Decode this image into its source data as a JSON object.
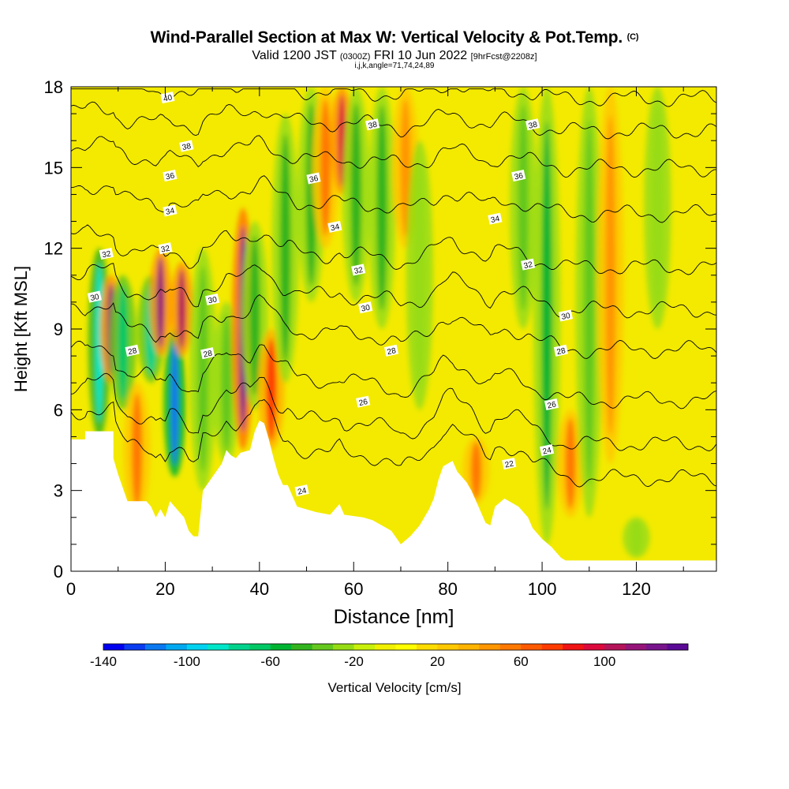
{
  "header": {
    "title": "Wind-Parallel Section at Max W: Vertical Velocity & Pot.Temp.",
    "copyright": "(C)",
    "valid_main": "Valid 1200 JST",
    "valid_utc": "(0300Z)",
    "valid_date": "FRI 10 Jun 2022",
    "forecast": "[9hrFcst@2208z]",
    "indices": "i,j,k,angle=71,74,24,89"
  },
  "chart_data": {
    "type": "heatmap",
    "xlabel": "Distance [nm]",
    "ylabel": "Height [Kft MSL]",
    "xlim": [
      0,
      137
    ],
    "ylim": [
      0,
      18
    ],
    "x_ticks": [
      0,
      20,
      40,
      60,
      80,
      100,
      120
    ],
    "y_ticks": [
      0,
      3,
      6,
      9,
      12,
      15,
      18
    ],
    "colorbar": {
      "label": "Vertical Velocity [cm/s]",
      "range": [
        -140,
        140
      ],
      "tick_values": [
        -140,
        -100,
        -60,
        -20,
        20,
        60,
        100
      ],
      "colors": [
        "#0000f0",
        "#0a3cf0",
        "#0a78f0",
        "#00a8f0",
        "#00d2f0",
        "#00e6c8",
        "#00d28c",
        "#00c864",
        "#00b432",
        "#32b41e",
        "#64c81e",
        "#96dc14",
        "#c8f00a",
        "#f0f000",
        "#ffff00",
        "#ffdc00",
        "#ffc800",
        "#ffb400",
        "#ff9600",
        "#ff7800",
        "#ff5a00",
        "#ff3c00",
        "#f01414",
        "#dc0a3c",
        "#b4145a",
        "#961478",
        "#78148c",
        "#5a0a96"
      ]
    },
    "velocity_features": [
      {
        "x": 6,
        "ymin": 5,
        "ymax": 12,
        "w": -90
      },
      {
        "x": 8.5,
        "ymin": 7,
        "ymax": 11,
        "w": 110
      },
      {
        "x": 11,
        "ymin": 6,
        "ymax": 11,
        "w": -70
      },
      {
        "x": 14,
        "ymin": 2,
        "ymax": 7,
        "w": 50
      },
      {
        "x": 17,
        "ymin": 7,
        "ymax": 11,
        "w": -80
      },
      {
        "x": 19,
        "ymin": 8,
        "ymax": 12,
        "w": 110
      },
      {
        "x": 22,
        "ymin": 3.5,
        "ymax": 9,
        "w": -120
      },
      {
        "x": 23.5,
        "ymin": 8,
        "ymax": 11.5,
        "w": 100
      },
      {
        "x": 28,
        "ymin": 3,
        "ymax": 12,
        "w": -40
      },
      {
        "x": 33,
        "ymin": 4,
        "ymax": 10,
        "w": -40
      },
      {
        "x": 36.5,
        "ymin": 4.5,
        "ymax": 13.5,
        "w": 125
      },
      {
        "x": 39,
        "ymin": 6,
        "ymax": 13,
        "w": -50
      },
      {
        "x": 42.5,
        "ymin": 4.5,
        "ymax": 9,
        "w": 70
      },
      {
        "x": 45.5,
        "ymin": 7,
        "ymax": 17,
        "w": -50
      },
      {
        "x": 51,
        "ymin": 10,
        "ymax": 18,
        "w": -50
      },
      {
        "x": 54,
        "ymin": 12,
        "ymax": 18,
        "w": 50
      },
      {
        "x": 57.5,
        "ymin": 14,
        "ymax": 18,
        "w": 90
      },
      {
        "x": 60.5,
        "ymin": 10,
        "ymax": 18,
        "w": -50
      },
      {
        "x": 66,
        "ymin": 9,
        "ymax": 18,
        "w": -50
      },
      {
        "x": 71,
        "ymin": 12,
        "ymax": 18,
        "w": 40
      },
      {
        "x": 74,
        "ymin": 6,
        "ymax": 16,
        "w": -25
      },
      {
        "x": 86,
        "ymin": 2.5,
        "ymax": 5,
        "w": 50
      },
      {
        "x": 96,
        "ymin": 9,
        "ymax": 18,
        "w": -35
      },
      {
        "x": 101,
        "ymin": 1,
        "ymax": 18,
        "w": -55
      },
      {
        "x": 106,
        "ymin": 2,
        "ymax": 6,
        "w": 50
      },
      {
        "x": 110,
        "ymin": 2,
        "ymax": 18,
        "w": -40
      },
      {
        "x": 114.5,
        "ymin": 4,
        "ymax": 18,
        "w": 40
      },
      {
        "x": 124.5,
        "ymin": 9,
        "ymax": 18,
        "w": -30
      },
      {
        "x": 120,
        "ymin": 0.5,
        "ymax": 2,
        "w": -30
      }
    ],
    "terrain_kft": [
      [
        0,
        4.9
      ],
      [
        3,
        4.9
      ],
      [
        3,
        5.2
      ],
      [
        9,
        5.2
      ],
      [
        9,
        4.2
      ],
      [
        10,
        3.6
      ],
      [
        12,
        2.6
      ],
      [
        16,
        2.6
      ],
      [
        17,
        2.4
      ],
      [
        18,
        2.0
      ],
      [
        19,
        2.3
      ],
      [
        20,
        2.0
      ],
      [
        21,
        2.6
      ],
      [
        24,
        2.0
      ],
      [
        25,
        1.5
      ],
      [
        26,
        1.3
      ],
      [
        27,
        1.3
      ],
      [
        28,
        3.0
      ],
      [
        30,
        3.5
      ],
      [
        32,
        4.0
      ],
      [
        33,
        4.5
      ],
      [
        34,
        4.3
      ],
      [
        35,
        4.2
      ],
      [
        36,
        4.4
      ],
      [
        38,
        4.5
      ],
      [
        39,
        5.2
      ],
      [
        40,
        5.6
      ],
      [
        41,
        5.5
      ],
      [
        42,
        4.9
      ],
      [
        43,
        4.2
      ],
      [
        44,
        3.6
      ],
      [
        45,
        3.2
      ],
      [
        46,
        3.2
      ],
      [
        47,
        2.8
      ],
      [
        48,
        2.4
      ],
      [
        52,
        2.2
      ],
      [
        55,
        2.1
      ],
      [
        57,
        2.5
      ],
      [
        58,
        2.1
      ],
      [
        62,
        2.0
      ],
      [
        64,
        1.9
      ],
      [
        66,
        1.7
      ],
      [
        68,
        1.5
      ],
      [
        70,
        1.0
      ],
      [
        72,
        1.3
      ],
      [
        74,
        1.7
      ],
      [
        75,
        2.0
      ],
      [
        76,
        2.3
      ],
      [
        77,
        2.7
      ],
      [
        78,
        3.4
      ],
      [
        79,
        3.9
      ],
      [
        81,
        4.1
      ],
      [
        82,
        3.7
      ],
      [
        84,
        3.3
      ],
      [
        85,
        3.0
      ],
      [
        86,
        2.6
      ],
      [
        88,
        1.8
      ],
      [
        89,
        1.7
      ],
      [
        90,
        2.4
      ],
      [
        92,
        2.7
      ],
      [
        93,
        2.6
      ],
      [
        95,
        2.4
      ],
      [
        97,
        2.0
      ],
      [
        98,
        1.6
      ],
      [
        100,
        1.2
      ],
      [
        102,
        0.9
      ],
      [
        104,
        0.5
      ],
      [
        105,
        0.4
      ],
      [
        137,
        0.4
      ]
    ],
    "theta_contours": [
      {
        "level": 22,
        "base": 3.25,
        "label_at": 92
      },
      {
        "level": 24,
        "base": 4.55,
        "label_at": 48
      },
      {
        "level": 26,
        "base": 6.2,
        "label_at": 101
      },
      {
        "level": 28,
        "base": 8.1,
        "label_at": 66
      },
      {
        "level": 30,
        "base": 9.6,
        "label_at": 29
      },
      {
        "level": 32,
        "base": 11.2,
        "label_at": 60
      },
      {
        "level": 34,
        "base": 13.2,
        "label_at": 91
      },
      {
        "level": 36,
        "base": 14.9,
        "label_at": 93
      },
      {
        "level": 38,
        "base": 16.3,
        "label_at": 63
      },
      {
        "level": 40,
        "base": 17.5,
        "label_at": 20
      }
    ],
    "contour_labels": [
      {
        "text": "40",
        "x": 20.5,
        "y": 17.6
      },
      {
        "text": "38",
        "x": 24.5,
        "y": 15.8
      },
      {
        "text": "38",
        "x": 64,
        "y": 16.6
      },
      {
        "text": "38",
        "x": 98,
        "y": 16.6
      },
      {
        "text": "36",
        "x": 21,
        "y": 14.7
      },
      {
        "text": "36",
        "x": 51.5,
        "y": 14.6
      },
      {
        "text": "36",
        "x": 95,
        "y": 14.7
      },
      {
        "text": "34",
        "x": 21,
        "y": 13.4
      },
      {
        "text": "34",
        "x": 56,
        "y": 12.8
      },
      {
        "text": "34",
        "x": 90,
        "y": 13.1
      },
      {
        "text": "32",
        "x": 7.5,
        "y": 11.8
      },
      {
        "text": "32",
        "x": 20,
        "y": 12
      },
      {
        "text": "32",
        "x": 61,
        "y": 11.2
      },
      {
        "text": "32",
        "x": 97,
        "y": 11.4
      },
      {
        "text": "30",
        "x": 5,
        "y": 10.2
      },
      {
        "text": "30",
        "x": 30,
        "y": 10.1
      },
      {
        "text": "30",
        "x": 62.5,
        "y": 9.8
      },
      {
        "text": "30",
        "x": 105,
        "y": 9.5
      },
      {
        "text": "28",
        "x": 13,
        "y": 8.2
      },
      {
        "text": "28",
        "x": 29,
        "y": 8.1
      },
      {
        "text": "28",
        "x": 68,
        "y": 8.2
      },
      {
        "text": "28",
        "x": 104,
        "y": 8.2
      },
      {
        "text": "26",
        "x": 62,
        "y": 6.3
      },
      {
        "text": "26",
        "x": 102,
        "y": 6.2
      },
      {
        "text": "24",
        "x": 49,
        "y": 3
      },
      {
        "text": "24",
        "x": 101,
        "y": 4.5
      },
      {
        "text": "22",
        "x": 93,
        "y": 4
      }
    ],
    "grid": false
  }
}
